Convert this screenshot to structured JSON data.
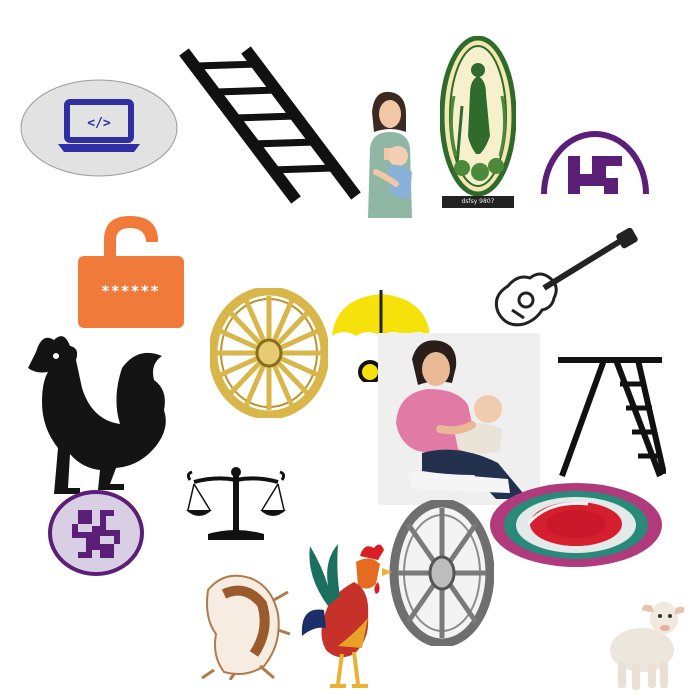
{
  "canvas": {
    "background": "#ffffff"
  },
  "symbols": [
    {
      "name": "laptop-code",
      "icon": "laptop-code-icon"
    },
    {
      "name": "ladder-diagonal",
      "icon": "ladder-icon"
    },
    {
      "name": "mother-with-child",
      "icon": "mother-child-icon"
    },
    {
      "name": "farmer-emblem",
      "icon": "farmer-emblem-icon",
      "caption": "dsfsy 9807"
    },
    {
      "name": "purple-arch-mark",
      "icon": "arch-symbol-icon"
    },
    {
      "name": "padlock-password",
      "icon": "padlock-icon",
      "text": "******"
    },
    {
      "name": "guitar",
      "icon": "guitar-icon"
    },
    {
      "name": "cart-wheel-gold",
      "icon": "wheel-icon"
    },
    {
      "name": "umbrella",
      "icon": "umbrella-icon"
    },
    {
      "name": "rooster-black",
      "icon": "rooster-icon"
    },
    {
      "name": "mother-feeding-baby",
      "icon": "mother-feeding-icon"
    },
    {
      "name": "ladder-a-frame",
      "icon": "ladder-icon"
    },
    {
      "name": "swastika-badge",
      "icon": "swastika-icon"
    },
    {
      "name": "balance-scale",
      "icon": "scale-icon"
    },
    {
      "name": "spoked-wheel-grey",
      "icon": "wheel-icon"
    },
    {
      "name": "colored-spiral",
      "icon": "spiral-icon"
    },
    {
      "name": "conch-shell",
      "icon": "shell-icon"
    },
    {
      "name": "rooster-colorful",
      "icon": "rooster-icon"
    },
    {
      "name": "lamb",
      "icon": "lamb-icon"
    }
  ],
  "colors": {
    "laptop_blue": "#2d2fa3",
    "lock_orange": "#f07a3a",
    "wheel_gold": "#d8b64a",
    "umbrella_yellow": "#f6e20a",
    "purple": "#5b1f78",
    "emblem_green": "#2f6b2a",
    "spiral_red": "#d51f2e",
    "spiral_teal": "#2a8a7a"
  }
}
